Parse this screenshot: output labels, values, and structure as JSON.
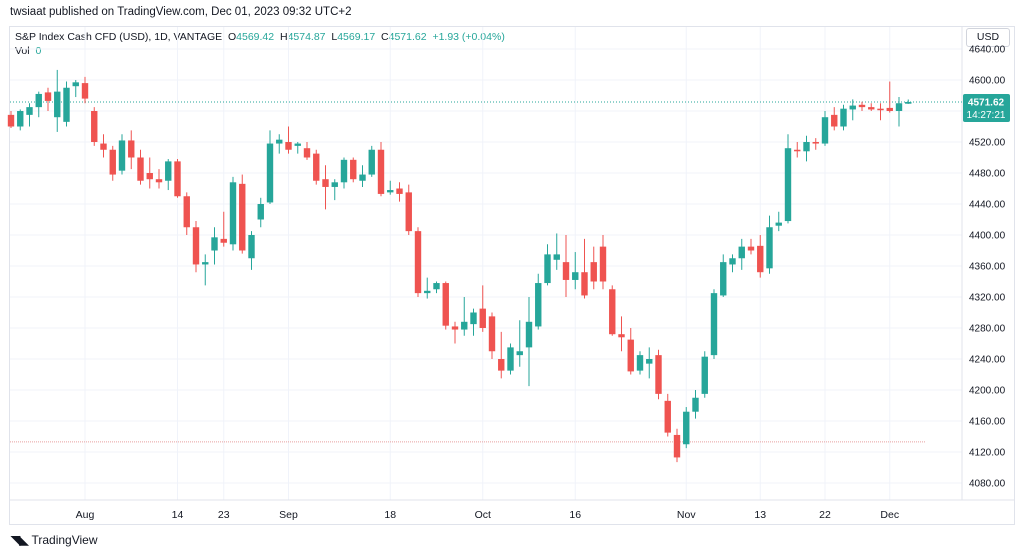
{
  "header": {
    "publish_text": "twsiaat published on TradingView.com, Dec 01, 2023 09:32 UTC+2"
  },
  "legend": {
    "symbol": "S&P Index Cash CFD (USD), 1D, VANTAGE",
    "o_label": "O",
    "o_value": "4569.42",
    "h_label": "H",
    "h_value": "4574.87",
    "l_label": "L",
    "l_value": "4569.17",
    "c_label": "C",
    "c_value": "4571.62",
    "change": "+1.93 (+0.04%)",
    "vol_label": "Vol",
    "vol_value": "0"
  },
  "price_axis": {
    "currency": "USD",
    "last_price": "4571.62",
    "countdown": "14:27:21"
  },
  "footer": {
    "brand": "TradingView"
  },
  "colors": {
    "up": "#26a69a",
    "down": "#ef5350",
    "grid": "#f0f3fa",
    "text": "#131722"
  },
  "chart_data": {
    "type": "candlestick",
    "ylim": [
      4060,
      4640
    ],
    "y_ticks": [
      4080,
      4120,
      4160,
      4200,
      4240,
      4280,
      4320,
      4360,
      4400,
      4440,
      4480,
      4520,
      4560,
      4600,
      4640
    ],
    "y_tick_labels": [
      "4080.00",
      "4120.00",
      "4160.00",
      "4200.00",
      "4240.00",
      "4280.00",
      "4320.00",
      "4360.00",
      "4400.00",
      "4440.00",
      "4480.00",
      "4520.00",
      "4560.00",
      "4600.00",
      "4640.00"
    ],
    "x_tick_labels": [
      {
        "bar": 8,
        "label": "Aug"
      },
      {
        "bar": 18,
        "label": "14"
      },
      {
        "bar": 23,
        "label": "23"
      },
      {
        "bar": 30,
        "label": "Sep"
      },
      {
        "bar": 41,
        "label": "18"
      },
      {
        "bar": 51,
        "label": "Oct"
      },
      {
        "bar": 61,
        "label": "16"
      },
      {
        "bar": 73,
        "label": "Nov"
      },
      {
        "bar": 81,
        "label": "13"
      },
      {
        "bar": 88,
        "label": "22"
      },
      {
        "bar": 95,
        "label": "Dec"
      }
    ],
    "last_price": 4571.62,
    "reference_level": 4133,
    "candles": [
      {
        "o": 4555,
        "h": 4560,
        "l": 4538,
        "c": 4540
      },
      {
        "o": 4540,
        "h": 4562,
        "l": 4535,
        "c": 4560
      },
      {
        "o": 4555,
        "h": 4570,
        "l": 4540,
        "c": 4565
      },
      {
        "o": 4565,
        "h": 4585,
        "l": 4552,
        "c": 4582
      },
      {
        "o": 4584,
        "h": 4590,
        "l": 4560,
        "c": 4573
      },
      {
        "o": 4552,
        "h": 4613,
        "l": 4533,
        "c": 4585
      },
      {
        "o": 4546,
        "h": 4598,
        "l": 4540,
        "c": 4590
      },
      {
        "o": 4592,
        "h": 4600,
        "l": 4578,
        "c": 4597
      },
      {
        "o": 4596,
        "h": 4604,
        "l": 4570,
        "c": 4576
      },
      {
        "o": 4560,
        "h": 4565,
        "l": 4515,
        "c": 4520
      },
      {
        "o": 4518,
        "h": 4530,
        "l": 4500,
        "c": 4510
      },
      {
        "o": 4510,
        "h": 4515,
        "l": 4470,
        "c": 4478
      },
      {
        "o": 4483,
        "h": 4530,
        "l": 4478,
        "c": 4522
      },
      {
        "o": 4522,
        "h": 4535,
        "l": 4485,
        "c": 4500
      },
      {
        "o": 4500,
        "h": 4510,
        "l": 4465,
        "c": 4470
      },
      {
        "o": 4480,
        "h": 4500,
        "l": 4460,
        "c": 4472
      },
      {
        "o": 4472,
        "h": 4485,
        "l": 4460,
        "c": 4468
      },
      {
        "o": 4470,
        "h": 4498,
        "l": 4458,
        "c": 4495
      },
      {
        "o": 4495,
        "h": 4498,
        "l": 4448,
        "c": 4450
      },
      {
        "o": 4450,
        "h": 4455,
        "l": 4400,
        "c": 4410
      },
      {
        "o": 4410,
        "h": 4418,
        "l": 4352,
        "c": 4362
      },
      {
        "o": 4362,
        "h": 4375,
        "l": 4335,
        "c": 4365
      },
      {
        "o": 4380,
        "h": 4410,
        "l": 4362,
        "c": 4397
      },
      {
        "o": 4395,
        "h": 4430,
        "l": 4385,
        "c": 4390
      },
      {
        "o": 4388,
        "h": 4475,
        "l": 4380,
        "c": 4468
      },
      {
        "o": 4466,
        "h": 4478,
        "l": 4376,
        "c": 4380
      },
      {
        "o": 4370,
        "h": 4405,
        "l": 4355,
        "c": 4400
      },
      {
        "o": 4420,
        "h": 4448,
        "l": 4410,
        "c": 4440
      },
      {
        "o": 4442,
        "h": 4535,
        "l": 4440,
        "c": 4518
      },
      {
        "o": 4518,
        "h": 4530,
        "l": 4505,
        "c": 4523
      },
      {
        "o": 4520,
        "h": 4540,
        "l": 4505,
        "c": 4510
      },
      {
        "o": 4515,
        "h": 4520,
        "l": 4505,
        "c": 4518
      },
      {
        "o": 4512,
        "h": 4520,
        "l": 4497,
        "c": 4500
      },
      {
        "o": 4505,
        "h": 4510,
        "l": 4465,
        "c": 4470
      },
      {
        "o": 4472,
        "h": 4490,
        "l": 4433,
        "c": 4462
      },
      {
        "o": 4462,
        "h": 4472,
        "l": 4445,
        "c": 4468
      },
      {
        "o": 4468,
        "h": 4500,
        "l": 4460,
        "c": 4497
      },
      {
        "o": 4497,
        "h": 4500,
        "l": 4468,
        "c": 4472
      },
      {
        "o": 4470,
        "h": 4490,
        "l": 4462,
        "c": 4478
      },
      {
        "o": 4478,
        "h": 4515,
        "l": 4475,
        "c": 4510
      },
      {
        "o": 4510,
        "h": 4520,
        "l": 4450,
        "c": 4453
      },
      {
        "o": 4455,
        "h": 4470,
        "l": 4452,
        "c": 4458
      },
      {
        "o": 4460,
        "h": 4468,
        "l": 4443,
        "c": 4453
      },
      {
        "o": 4455,
        "h": 4465,
        "l": 4400,
        "c": 4405
      },
      {
        "o": 4405,
        "h": 4410,
        "l": 4320,
        "c": 4325
      },
      {
        "o": 4325,
        "h": 4345,
        "l": 4318,
        "c": 4328
      },
      {
        "o": 4330,
        "h": 4340,
        "l": 4325,
        "c": 4338
      },
      {
        "o": 4338,
        "h": 4340,
        "l": 4278,
        "c": 4283
      },
      {
        "o": 4282,
        "h": 4288,
        "l": 4260,
        "c": 4278
      },
      {
        "o": 4278,
        "h": 4320,
        "l": 4270,
        "c": 4288
      },
      {
        "o": 4285,
        "h": 4305,
        "l": 4270,
        "c": 4300
      },
      {
        "o": 4305,
        "h": 4335,
        "l": 4275,
        "c": 4280
      },
      {
        "o": 4295,
        "h": 4300,
        "l": 4240,
        "c": 4250
      },
      {
        "o": 4240,
        "h": 4275,
        "l": 4215,
        "c": 4225
      },
      {
        "o": 4225,
        "h": 4260,
        "l": 4220,
        "c": 4255
      },
      {
        "o": 4245,
        "h": 4290,
        "l": 4230,
        "c": 4250
      },
      {
        "o": 4255,
        "h": 4320,
        "l": 4205,
        "c": 4288
      },
      {
        "o": 4282,
        "h": 4350,
        "l": 4278,
        "c": 4338
      },
      {
        "o": 4338,
        "h": 4388,
        "l": 4335,
        "c": 4375
      },
      {
        "o": 4368,
        "h": 4402,
        "l": 4355,
        "c": 4375
      },
      {
        "o": 4365,
        "h": 4400,
        "l": 4320,
        "c": 4342
      },
      {
        "o": 4342,
        "h": 4378,
        "l": 4330,
        "c": 4352
      },
      {
        "o": 4352,
        "h": 4395,
        "l": 4318,
        "c": 4322
      },
      {
        "o": 4365,
        "h": 4385,
        "l": 4330,
        "c": 4340
      },
      {
        "o": 4385,
        "h": 4400,
        "l": 4330,
        "c": 4340
      },
      {
        "o": 4330,
        "h": 4335,
        "l": 4270,
        "c": 4272
      },
      {
        "o": 4272,
        "h": 4295,
        "l": 4250,
        "c": 4268
      },
      {
        "o": 4265,
        "h": 4280,
        "l": 4220,
        "c": 4224
      },
      {
        "o": 4225,
        "h": 4250,
        "l": 4220,
        "c": 4245
      },
      {
        "o": 4234,
        "h": 4255,
        "l": 4215,
        "c": 4240
      },
      {
        "o": 4245,
        "h": 4252,
        "l": 4188,
        "c": 4195
      },
      {
        "o": 4186,
        "h": 4195,
        "l": 4140,
        "c": 4145
      },
      {
        "o": 4142,
        "h": 4150,
        "l": 4107,
        "c": 4113
      },
      {
        "o": 4130,
        "h": 4178,
        "l": 4125,
        "c": 4172
      },
      {
        "o": 4172,
        "h": 4200,
        "l": 4163,
        "c": 4190
      },
      {
        "o": 4195,
        "h": 4250,
        "l": 4190,
        "c": 4243
      },
      {
        "o": 4245,
        "h": 4330,
        "l": 4240,
        "c": 4325
      },
      {
        "o": 4322,
        "h": 4375,
        "l": 4320,
        "c": 4365
      },
      {
        "o": 4362,
        "h": 4375,
        "l": 4352,
        "c": 4370
      },
      {
        "o": 4370,
        "h": 4395,
        "l": 4355,
        "c": 4385
      },
      {
        "o": 4385,
        "h": 4395,
        "l": 4375,
        "c": 4380
      },
      {
        "o": 4386,
        "h": 4400,
        "l": 4345,
        "c": 4352
      },
      {
        "o": 4357,
        "h": 4425,
        "l": 4350,
        "c": 4410
      },
      {
        "o": 4412,
        "h": 4430,
        "l": 4405,
        "c": 4416
      },
      {
        "o": 4418,
        "h": 4530,
        "l": 4415,
        "c": 4512
      },
      {
        "o": 4510,
        "h": 4520,
        "l": 4500,
        "c": 4508
      },
      {
        "o": 4508,
        "h": 4528,
        "l": 4495,
        "c": 4520
      },
      {
        "o": 4520,
        "h": 4525,
        "l": 4510,
        "c": 4518
      },
      {
        "o": 4518,
        "h": 4560,
        "l": 4515,
        "c": 4552
      },
      {
        "o": 4555,
        "h": 4565,
        "l": 4535,
        "c": 4540
      },
      {
        "o": 4540,
        "h": 4568,
        "l": 4535,
        "c": 4563
      },
      {
        "o": 4562,
        "h": 4575,
        "l": 4548,
        "c": 4567
      },
      {
        "o": 4568,
        "h": 4572,
        "l": 4560,
        "c": 4565
      },
      {
        "o": 4565,
        "h": 4570,
        "l": 4560,
        "c": 4562
      },
      {
        "o": 4563,
        "h": 4570,
        "l": 4548,
        "c": 4561
      },
      {
        "o": 4564,
        "h": 4598,
        "l": 4558,
        "c": 4560
      },
      {
        "o": 4560,
        "h": 4578,
        "l": 4540,
        "c": 4570
      },
      {
        "o": 4569.42,
        "h": 4574.87,
        "l": 4569.17,
        "c": 4571.62
      }
    ]
  }
}
